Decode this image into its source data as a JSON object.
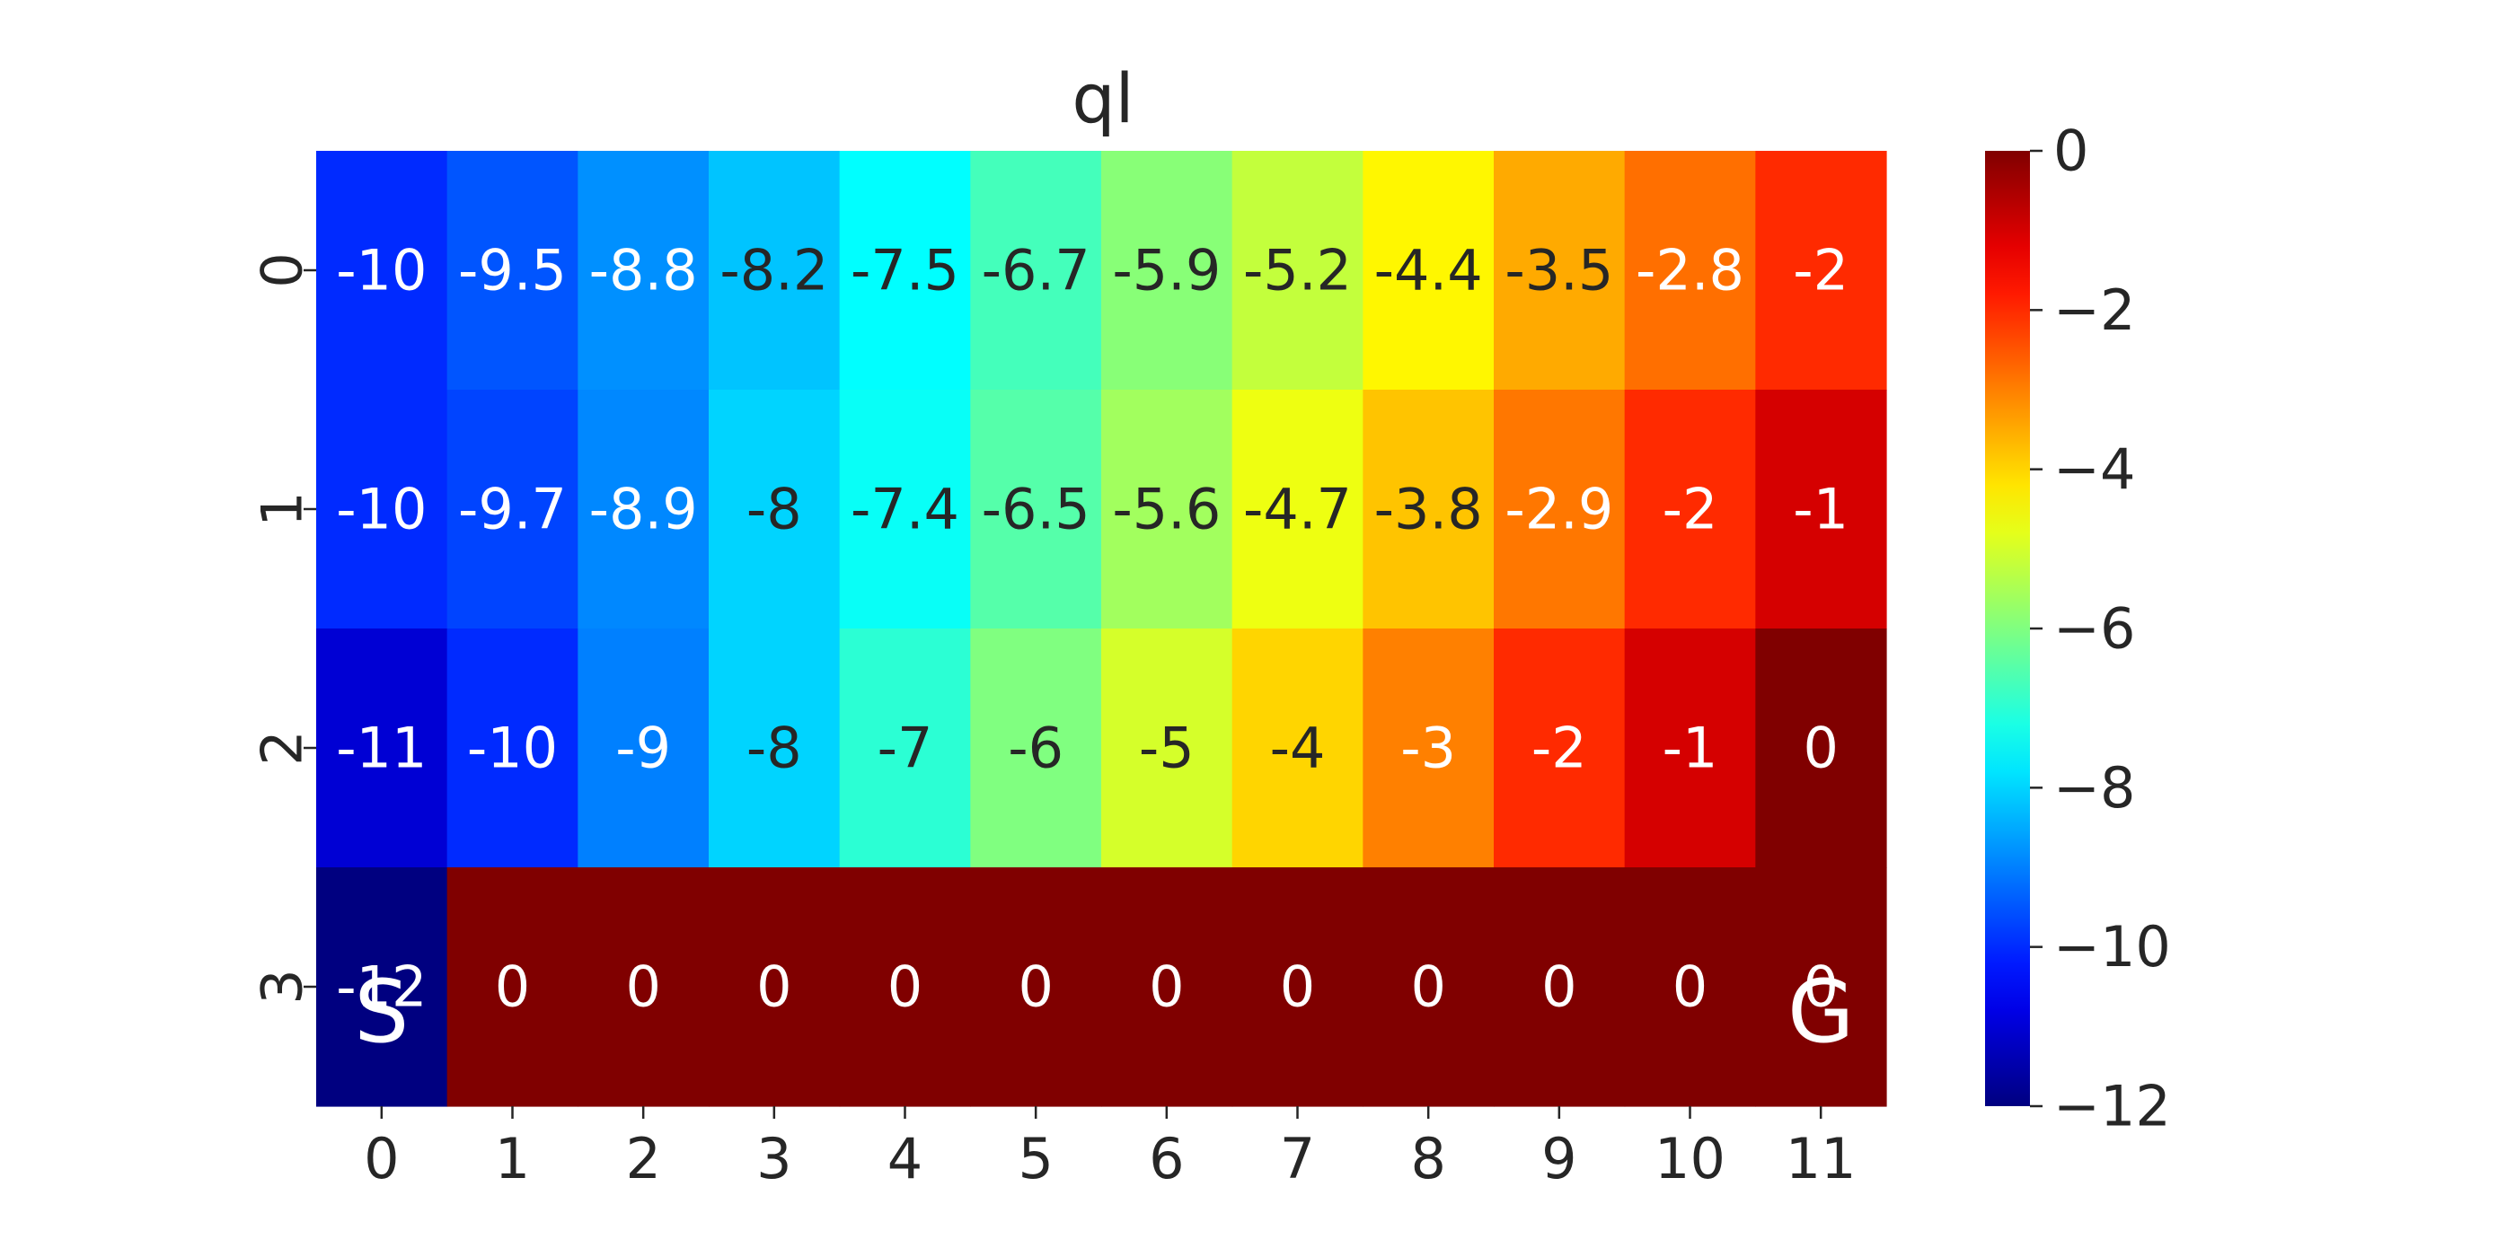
{
  "chart_data": {
    "type": "heatmap",
    "title": "ql",
    "xlabel": "",
    "ylabel": "",
    "x_categories": [
      "0",
      "1",
      "2",
      "3",
      "4",
      "5",
      "6",
      "7",
      "8",
      "9",
      "10",
      "11"
    ],
    "y_categories": [
      "0",
      "1",
      "2",
      "3"
    ],
    "values": [
      [
        -10,
        -9.5,
        -8.8,
        -8.2,
        -7.5,
        -6.7,
        -5.9,
        -5.2,
        -4.4,
        -3.5,
        -2.8,
        -2
      ],
      [
        -10,
        -9.7,
        -8.9,
        -8,
        -7.4,
        -6.5,
        -5.6,
        -4.7,
        -3.8,
        -2.9,
        -2,
        -1
      ],
      [
        -11,
        -10,
        -9,
        -8,
        -7,
        -6,
        -5,
        -4,
        -3,
        -2,
        -1,
        0
      ],
      [
        -12,
        0,
        0,
        0,
        0,
        0,
        0,
        0,
        0,
        0,
        0,
        0
      ]
    ],
    "cell_labels": [
      [
        "-10",
        "-9.5",
        "-8.8",
        "-8.2",
        "-7.5",
        "-6.7",
        "-5.9",
        "-5.2",
        "-4.4",
        "-3.5",
        "-2.8",
        "-2"
      ],
      [
        "-10",
        "-9.7",
        "-8.9",
        "-8",
        "-7.4",
        "-6.5",
        "-5.6",
        "-4.7",
        "-3.8",
        "-2.9",
        "-2",
        "-1"
      ],
      [
        "-11",
        "-10",
        "-9",
        "-8",
        "-7",
        "-6",
        "-5",
        "-4",
        "-3",
        "-2",
        "-1",
        "0"
      ],
      [
        "-12",
        "0",
        "0",
        "0",
        "0",
        "0",
        "0",
        "0",
        "0",
        "0",
        "0",
        "0"
      ]
    ],
    "markers": [
      {
        "text": "S",
        "row": 3,
        "col": 0
      },
      {
        "text": "G",
        "row": 3,
        "col": 11
      }
    ],
    "colormap": "jet",
    "vmin": -12,
    "vmax": 0,
    "colorbar_ticks": [
      "0",
      "−2",
      "−4",
      "−6",
      "−8",
      "−10",
      "−12"
    ],
    "colorbar_tick_values": [
      0,
      -2,
      -4,
      -6,
      -8,
      -10,
      -12
    ],
    "grid": false,
    "legend": "colorbar-right"
  }
}
